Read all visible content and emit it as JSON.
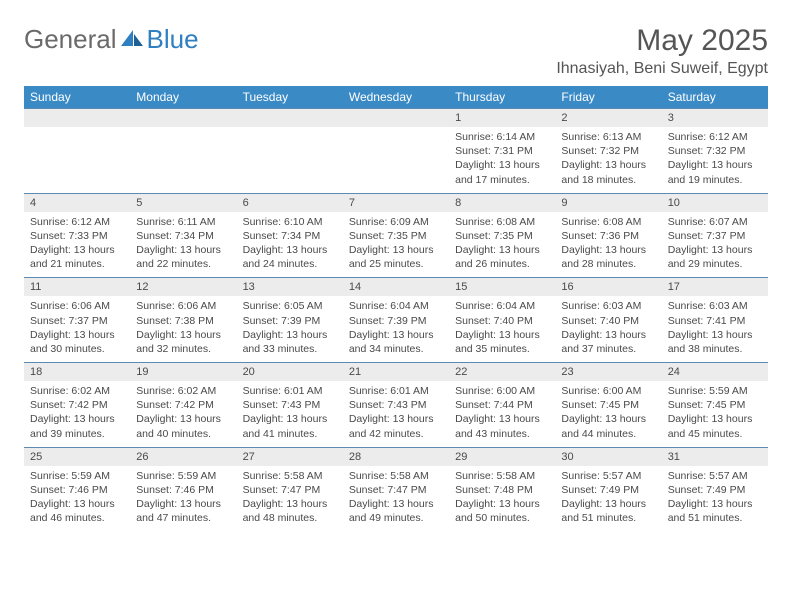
{
  "logo": {
    "text1": "General",
    "text2": "Blue"
  },
  "title": "May 2025",
  "location": "Ihnasiyah, Beni Suweif, Egypt",
  "colors": {
    "header_bg": "#3a8ac6",
    "daynum_bg": "#ececec",
    "daynum_border": "#5b8ab3",
    "logo_gray": "#6a6a6a",
    "logo_blue": "#2f7fc1"
  },
  "dow": [
    "Sunday",
    "Monday",
    "Tuesday",
    "Wednesday",
    "Thursday",
    "Friday",
    "Saturday"
  ],
  "weeks": [
    [
      {
        "n": "",
        "sr": "",
        "ss": "",
        "dl": ""
      },
      {
        "n": "",
        "sr": "",
        "ss": "",
        "dl": ""
      },
      {
        "n": "",
        "sr": "",
        "ss": "",
        "dl": ""
      },
      {
        "n": "",
        "sr": "",
        "ss": "",
        "dl": ""
      },
      {
        "n": "1",
        "sr": "Sunrise: 6:14 AM",
        "ss": "Sunset: 7:31 PM",
        "dl": "Daylight: 13 hours and 17 minutes."
      },
      {
        "n": "2",
        "sr": "Sunrise: 6:13 AM",
        "ss": "Sunset: 7:32 PM",
        "dl": "Daylight: 13 hours and 18 minutes."
      },
      {
        "n": "3",
        "sr": "Sunrise: 6:12 AM",
        "ss": "Sunset: 7:32 PM",
        "dl": "Daylight: 13 hours and 19 minutes."
      }
    ],
    [
      {
        "n": "4",
        "sr": "Sunrise: 6:12 AM",
        "ss": "Sunset: 7:33 PM",
        "dl": "Daylight: 13 hours and 21 minutes."
      },
      {
        "n": "5",
        "sr": "Sunrise: 6:11 AM",
        "ss": "Sunset: 7:34 PM",
        "dl": "Daylight: 13 hours and 22 minutes."
      },
      {
        "n": "6",
        "sr": "Sunrise: 6:10 AM",
        "ss": "Sunset: 7:34 PM",
        "dl": "Daylight: 13 hours and 24 minutes."
      },
      {
        "n": "7",
        "sr": "Sunrise: 6:09 AM",
        "ss": "Sunset: 7:35 PM",
        "dl": "Daylight: 13 hours and 25 minutes."
      },
      {
        "n": "8",
        "sr": "Sunrise: 6:08 AM",
        "ss": "Sunset: 7:35 PM",
        "dl": "Daylight: 13 hours and 26 minutes."
      },
      {
        "n": "9",
        "sr": "Sunrise: 6:08 AM",
        "ss": "Sunset: 7:36 PM",
        "dl": "Daylight: 13 hours and 28 minutes."
      },
      {
        "n": "10",
        "sr": "Sunrise: 6:07 AM",
        "ss": "Sunset: 7:37 PM",
        "dl": "Daylight: 13 hours and 29 minutes."
      }
    ],
    [
      {
        "n": "11",
        "sr": "Sunrise: 6:06 AM",
        "ss": "Sunset: 7:37 PM",
        "dl": "Daylight: 13 hours and 30 minutes."
      },
      {
        "n": "12",
        "sr": "Sunrise: 6:06 AM",
        "ss": "Sunset: 7:38 PM",
        "dl": "Daylight: 13 hours and 32 minutes."
      },
      {
        "n": "13",
        "sr": "Sunrise: 6:05 AM",
        "ss": "Sunset: 7:39 PM",
        "dl": "Daylight: 13 hours and 33 minutes."
      },
      {
        "n": "14",
        "sr": "Sunrise: 6:04 AM",
        "ss": "Sunset: 7:39 PM",
        "dl": "Daylight: 13 hours and 34 minutes."
      },
      {
        "n": "15",
        "sr": "Sunrise: 6:04 AM",
        "ss": "Sunset: 7:40 PM",
        "dl": "Daylight: 13 hours and 35 minutes."
      },
      {
        "n": "16",
        "sr": "Sunrise: 6:03 AM",
        "ss": "Sunset: 7:40 PM",
        "dl": "Daylight: 13 hours and 37 minutes."
      },
      {
        "n": "17",
        "sr": "Sunrise: 6:03 AM",
        "ss": "Sunset: 7:41 PM",
        "dl": "Daylight: 13 hours and 38 minutes."
      }
    ],
    [
      {
        "n": "18",
        "sr": "Sunrise: 6:02 AM",
        "ss": "Sunset: 7:42 PM",
        "dl": "Daylight: 13 hours and 39 minutes."
      },
      {
        "n": "19",
        "sr": "Sunrise: 6:02 AM",
        "ss": "Sunset: 7:42 PM",
        "dl": "Daylight: 13 hours and 40 minutes."
      },
      {
        "n": "20",
        "sr": "Sunrise: 6:01 AM",
        "ss": "Sunset: 7:43 PM",
        "dl": "Daylight: 13 hours and 41 minutes."
      },
      {
        "n": "21",
        "sr": "Sunrise: 6:01 AM",
        "ss": "Sunset: 7:43 PM",
        "dl": "Daylight: 13 hours and 42 minutes."
      },
      {
        "n": "22",
        "sr": "Sunrise: 6:00 AM",
        "ss": "Sunset: 7:44 PM",
        "dl": "Daylight: 13 hours and 43 minutes."
      },
      {
        "n": "23",
        "sr": "Sunrise: 6:00 AM",
        "ss": "Sunset: 7:45 PM",
        "dl": "Daylight: 13 hours and 44 minutes."
      },
      {
        "n": "24",
        "sr": "Sunrise: 5:59 AM",
        "ss": "Sunset: 7:45 PM",
        "dl": "Daylight: 13 hours and 45 minutes."
      }
    ],
    [
      {
        "n": "25",
        "sr": "Sunrise: 5:59 AM",
        "ss": "Sunset: 7:46 PM",
        "dl": "Daylight: 13 hours and 46 minutes."
      },
      {
        "n": "26",
        "sr": "Sunrise: 5:59 AM",
        "ss": "Sunset: 7:46 PM",
        "dl": "Daylight: 13 hours and 47 minutes."
      },
      {
        "n": "27",
        "sr": "Sunrise: 5:58 AM",
        "ss": "Sunset: 7:47 PM",
        "dl": "Daylight: 13 hours and 48 minutes."
      },
      {
        "n": "28",
        "sr": "Sunrise: 5:58 AM",
        "ss": "Sunset: 7:47 PM",
        "dl": "Daylight: 13 hours and 49 minutes."
      },
      {
        "n": "29",
        "sr": "Sunrise: 5:58 AM",
        "ss": "Sunset: 7:48 PM",
        "dl": "Daylight: 13 hours and 50 minutes."
      },
      {
        "n": "30",
        "sr": "Sunrise: 5:57 AM",
        "ss": "Sunset: 7:49 PM",
        "dl": "Daylight: 13 hours and 51 minutes."
      },
      {
        "n": "31",
        "sr": "Sunrise: 5:57 AM",
        "ss": "Sunset: 7:49 PM",
        "dl": "Daylight: 13 hours and 51 minutes."
      }
    ]
  ]
}
